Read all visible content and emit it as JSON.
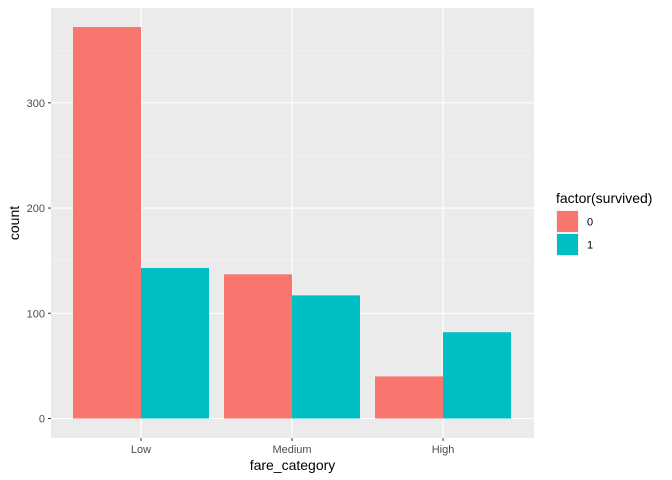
{
  "chart_data": {
    "type": "bar",
    "title": "",
    "xlabel": "fare_category",
    "ylabel": "count",
    "categories": [
      "Low",
      "Medium",
      "High"
    ],
    "series": [
      {
        "name": "0",
        "color": "#F8766D",
        "values": [
          372,
          137,
          40
        ]
      },
      {
        "name": "1",
        "color": "#00BFC4",
        "values": [
          143,
          117,
          82
        ]
      }
    ],
    "ylim": [
      0,
      390
    ],
    "yticks": [
      0,
      100,
      200,
      300
    ],
    "ytick_labels": [
      "0",
      "100",
      "200",
      "300"
    ],
    "grid": true,
    "legend": {
      "title": "factor(survived)",
      "placement": "right"
    }
  }
}
